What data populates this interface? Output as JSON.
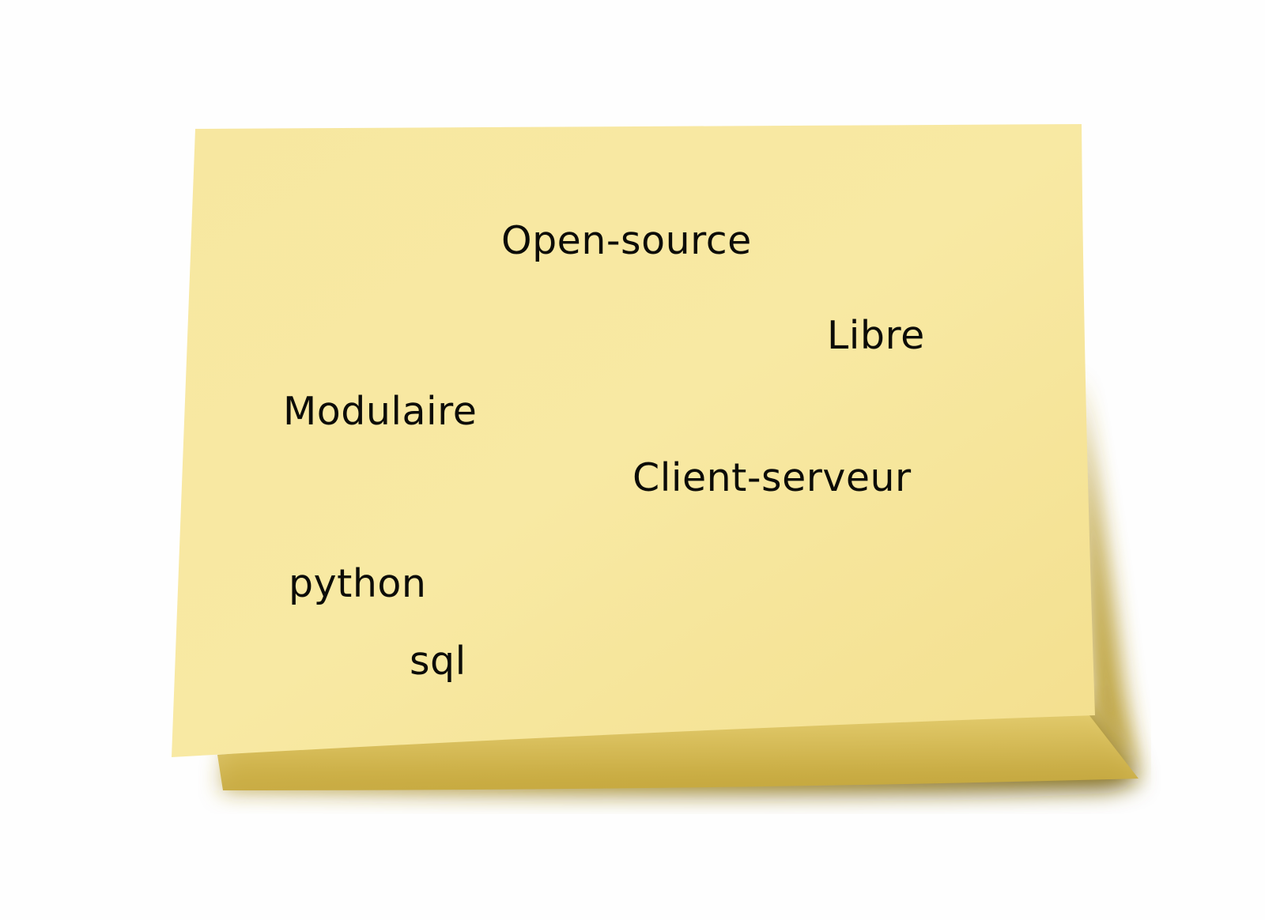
{
  "note": {
    "paper_color": "#f6e59a",
    "shadow_color": "#a88c1e",
    "words": [
      "Open-source",
      "Libre",
      "Modulaire",
      "Client-serveur",
      "python",
      "sql"
    ]
  }
}
